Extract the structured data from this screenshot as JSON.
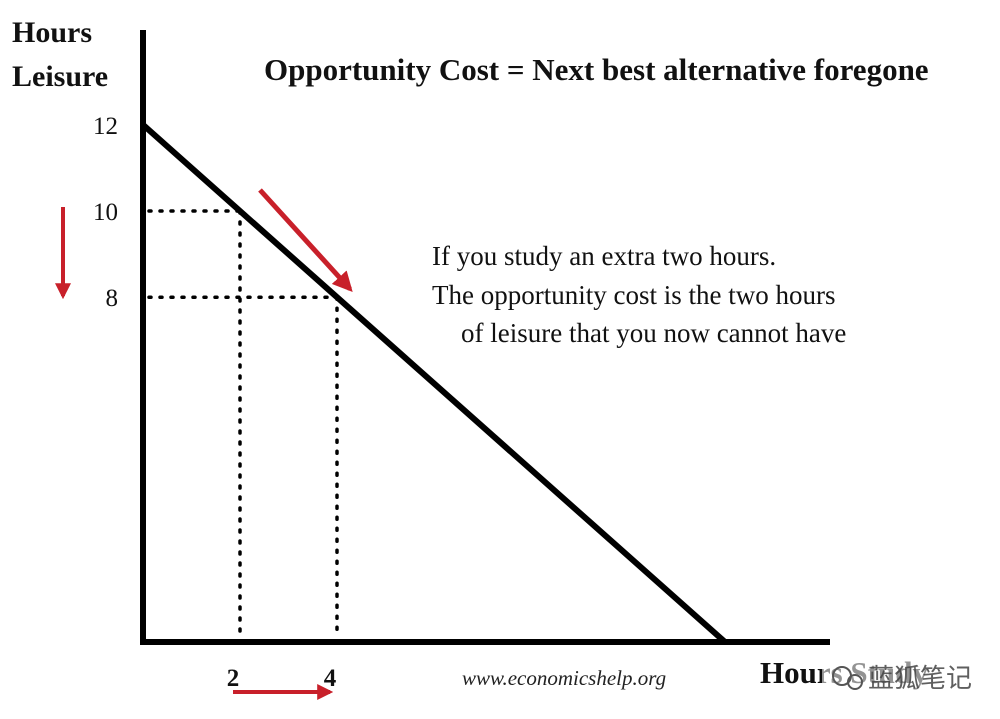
{
  "chart_data": {
    "type": "line",
    "title": "Opportunity Cost = Next best alternative foregone",
    "ylabel_line1": "Hours",
    "ylabel_line2": "Leisure",
    "xlabel": "Hours Study",
    "ylim": [
      0,
      13
    ],
    "xlim": [
      0,
      15.5
    ],
    "grid": false,
    "y_ticks": [
      "12",
      "10",
      "8"
    ],
    "x_ticks": [
      "2",
      "4"
    ],
    "series": [
      {
        "points": [
          {
            "x": 0,
            "y": 12
          },
          {
            "x": 12,
            "y": 0
          }
        ]
      }
    ],
    "guides": [
      {
        "x": 2,
        "y": 10
      },
      {
        "x": 4,
        "y": 8
      }
    ],
    "annotation": {
      "lines": [
        "If you study an extra two hours.",
        "The opportunity cost is the two hours",
        "of leisure that you now cannot have"
      ]
    },
    "source": "www.economicshelp.org",
    "arrow_color": "#c8202a",
    "line_color": "#000000"
  },
  "watermark": {
    "text": "蓝狐笔记"
  }
}
